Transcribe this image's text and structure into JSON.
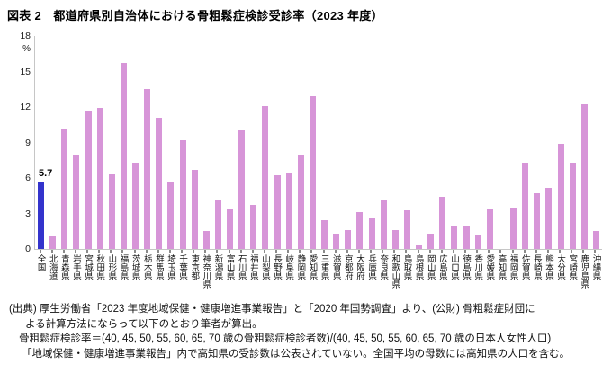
{
  "figure": {
    "title": "図表 2　都道府県別自治体における骨粗鬆症検診受診率（2023 年度）"
  },
  "chart_data": {
    "type": "bar",
    "title": "都道府県別自治体における骨粗鬆症検診受診率（2023年度）",
    "ylabel": "%",
    "ylim": [
      0,
      18
    ],
    "yticks": [
      0,
      3,
      6,
      9,
      12,
      15,
      18
    ],
    "grid": false,
    "legend": "none",
    "average_line": {
      "value": 5.7,
      "label": "5.7"
    },
    "bar_color": "#d795d8",
    "highlight_color": "#3333cc",
    "highlight_index": 0,
    "categories": [
      "全国",
      "北海道",
      "青森県",
      "岩手県",
      "宮城県",
      "秋田県",
      "山形県",
      "福島県",
      "茨城県",
      "栃木県",
      "群馬県",
      "埼玉県",
      "千葉県",
      "東京都",
      "神奈川県",
      "新潟県",
      "富山県",
      "石川県",
      "福井県",
      "山梨県",
      "長野県",
      "岐阜県",
      "静岡県",
      "愛知県",
      "三重県",
      "滋賀県",
      "京都府",
      "大阪府",
      "兵庫県",
      "奈良県",
      "和歌山県",
      "鳥取県",
      "島根県",
      "岡山県",
      "広島県",
      "山口県",
      "徳島県",
      "香川県",
      "愛媛県",
      "高知県",
      "福岡県",
      "佐賀県",
      "長崎県",
      "熊本県",
      "大分県",
      "宮崎県",
      "鹿児島県",
      "沖縄県"
    ],
    "values": [
      5.7,
      1.1,
      10.2,
      8.0,
      11.7,
      11.9,
      6.3,
      15.7,
      7.3,
      13.5,
      11.1,
      5.6,
      9.2,
      6.7,
      1.5,
      4.2,
      3.4,
      10.0,
      3.7,
      12.1,
      6.2,
      6.4,
      8.0,
      12.9,
      2.4,
      1.3,
      1.6,
      3.1,
      2.6,
      4.2,
      1.6,
      3.3,
      0.3,
      1.3,
      4.4,
      2.0,
      1.9,
      1.2,
      3.4,
      null,
      3.5,
      7.3,
      4.7,
      5.2,
      8.9,
      7.3,
      12.2,
      1.5
    ]
  },
  "footnote": {
    "lines": [
      "(出典) 厚生労働省「2023 年度地域保健・健康増進事業報告」と「2020 年国勢調査」より、(公財) 骨粗鬆症財団に",
      "よる計算方法にならって以下のとおり筆者が算出。",
      "骨粗鬆症検診率＝(40, 45, 50, 55, 60, 65, 70 歳の骨粗鬆症検診者数)/(40, 45, 50, 55, 60, 65, 70 歳の日本人女性人口)",
      "「地域保健・健康増進事業報告」内で高知県の受診数は公表されていない。全国平均の母数には高知県の人口を含む。"
    ]
  }
}
